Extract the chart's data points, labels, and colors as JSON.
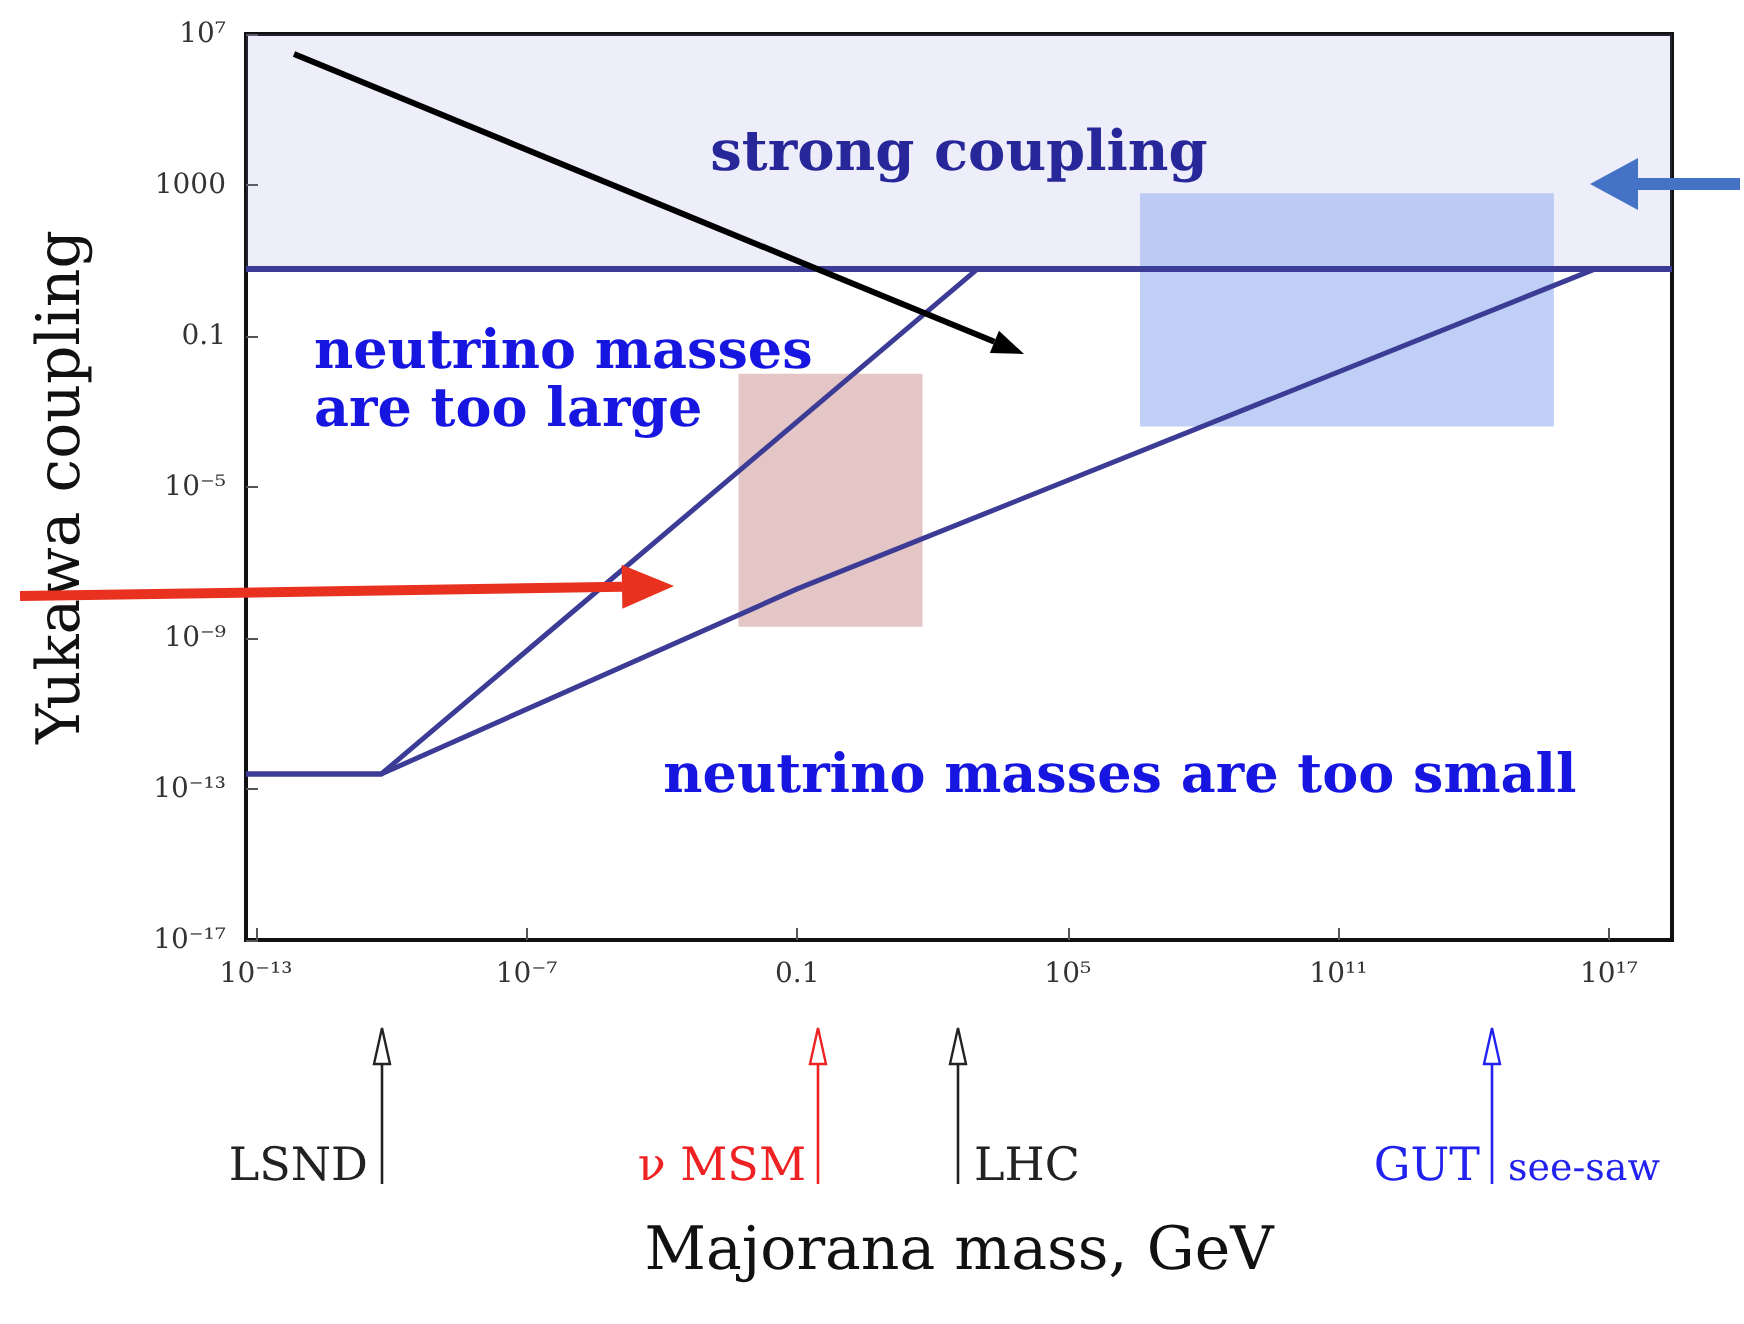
{
  "chart_data": {
    "type": "line",
    "xlabel": "Majorana mass, GeV",
    "ylabel": "Yukawa coupling",
    "log": "xy",
    "grid": false,
    "xlim": [
      6e-14,
      2.5e+18
    ],
    "ylim": [
      1e-17,
      10000000.0
    ],
    "xticks": [
      {
        "value": 1e-13,
        "label": "10⁻¹³"
      },
      {
        "value": 1e-07,
        "label": "10⁻⁷"
      },
      {
        "value": 0.1,
        "label": "0.1"
      },
      {
        "value": 100000.0,
        "label": "10⁵"
      },
      {
        "value": 100000000000.0,
        "label": "10¹¹"
      },
      {
        "value": 1e+17,
        "label": "10¹⁷"
      }
    ],
    "yticks": [
      {
        "value": 1e-17,
        "label": "10⁻¹⁷"
      },
      {
        "value": 1e-13,
        "label": "10⁻¹³"
      },
      {
        "value": 1e-09,
        "label": "10⁻⁹"
      },
      {
        "value": 1e-05,
        "label": "10⁻⁵"
      },
      {
        "value": 0.1,
        "label": "0.1"
      },
      {
        "value": 1000,
        "label": "1000"
      },
      {
        "value": 10000000.0,
        "label": "10⁷"
      }
    ],
    "series": [
      {
        "type": "area",
        "color": "#dbb3b3",
        "x": [
          0.005,
          0.005,
          60,
          60
        ],
        "values": [
          2e-09,
          0.01,
          0.01,
          2e-09
        ]
      },
      {
        "type": "area",
        "color": "#a9bff2",
        "x": [
          4000000.0,
          4000000.0,
          6000000000000000.0,
          6000000000000000.0
        ],
        "values": [
          0.0004,
          600,
          600,
          0.0004
        ]
      },
      {
        "color": "#3c3c96",
        "x": [
          6e-14,
          6e-11,
          1000
        ],
        "values": [
          2.5e-13,
          2.5e-13,
          6
        ]
      },
      {
        "color": "#3c3c96",
        "x": [
          6e-14,
          6e-11,
          0.1,
          5e+16
        ],
        "values": [
          2.5e-13,
          2.5e-13,
          2e-08,
          6
        ]
      }
    ],
    "ref_lines": [
      {
        "axis": "y",
        "value": 6,
        "color": "#3c3c96"
      }
    ],
    "bands": [
      {
        "axis": "y",
        "from": 6,
        "to": 10000000.0,
        "label": "strong coupling",
        "color": "#8c8ce6"
      }
    ],
    "annotations": [
      "neutrino masses\nare too large",
      "neutrino masses are too small",
      "LSND",
      "ν MSM",
      "LHC",
      "GUT",
      "see-saw"
    ]
  }
}
